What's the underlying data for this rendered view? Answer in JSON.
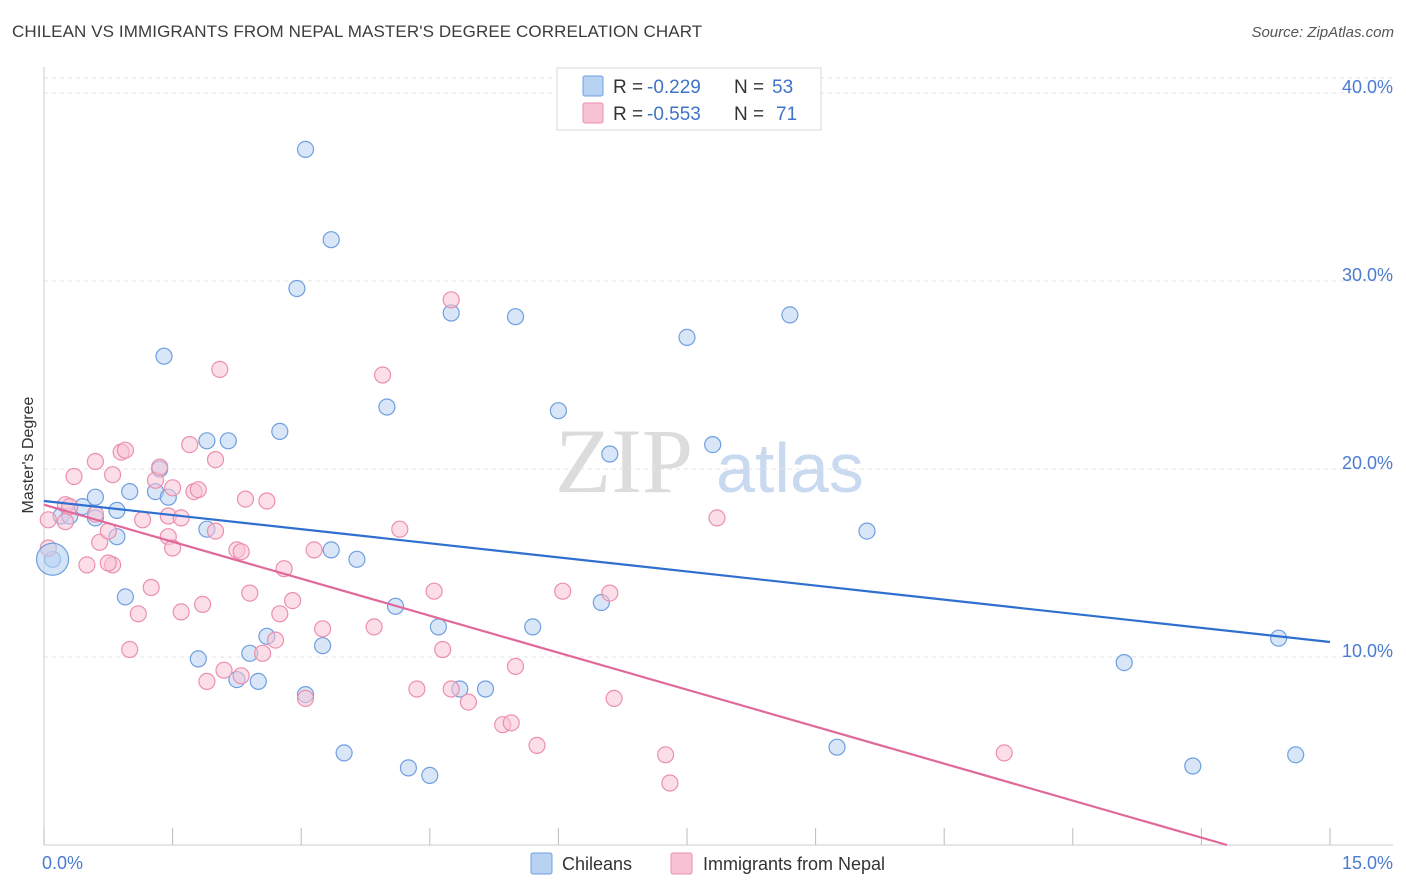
{
  "header": {
    "title": "CHILEAN VS IMMIGRANTS FROM NEPAL MASTER'S DEGREE CORRELATION CHART",
    "source": "Source: ZipAtlas.com"
  },
  "watermark": {
    "zip": "ZIP",
    "atlas": "atlas"
  },
  "chart_data": {
    "type": "scatter",
    "title": "CHILEAN VS IMMIGRANTS FROM NEPAL MASTER'S DEGREE CORRELATION CHART",
    "xlabel": "",
    "ylabel": "Master's Degree",
    "xlim": [
      0,
      15
    ],
    "ylim": [
      0,
      40.8
    ],
    "x_tick_labels": [
      "0.0%",
      "15.0%"
    ],
    "y_ticks": [
      10,
      20,
      30,
      40
    ],
    "y_tick_labels": [
      "10.0%",
      "20.0%",
      "30.0%",
      "40.0%"
    ],
    "grid": true,
    "legend_position": "bottom-center",
    "stats": [
      {
        "r_label": "R =",
        "r_value": "-0.229",
        "n_label": "N =",
        "n_value": "53"
      },
      {
        "r_label": "R =",
        "r_value": "-0.553",
        "n_label": "N =",
        "n_value": "71"
      }
    ],
    "series": [
      {
        "name": "Chileans",
        "color": "#6f9fe0",
        "fill": "#b8d2f2",
        "line_color": "#2f6fcf",
        "trend": {
          "x0": 0,
          "y0": 18.3,
          "x1": 15,
          "y1": 10.8
        },
        "points": [
          [
            0.1,
            15.2
          ],
          [
            0.2,
            17.5
          ],
          [
            0.3,
            17.5
          ],
          [
            0.45,
            18.0
          ],
          [
            0.6,
            18.5
          ],
          [
            0.85,
            17.8
          ],
          [
            1.0,
            18.8
          ],
          [
            1.3,
            18.8
          ],
          [
            1.45,
            18.5
          ],
          [
            1.35,
            20.0
          ],
          [
            1.4,
            26.0
          ],
          [
            1.9,
            21.5
          ],
          [
            2.15,
            21.5
          ],
          [
            1.9,
            16.8
          ],
          [
            0.85,
            16.4
          ],
          [
            0.95,
            13.2
          ],
          [
            1.8,
            9.9
          ],
          [
            2.25,
            8.8
          ],
          [
            2.4,
            10.2
          ],
          [
            2.5,
            8.7
          ],
          [
            2.6,
            11.1
          ],
          [
            2.75,
            22.0
          ],
          [
            3.05,
            37.0
          ],
          [
            2.95,
            29.6
          ],
          [
            3.35,
            32.2
          ],
          [
            3.35,
            15.7
          ],
          [
            3.05,
            8.0
          ],
          [
            3.25,
            10.6
          ],
          [
            3.5,
            4.9
          ],
          [
            3.65,
            15.2
          ],
          [
            4.0,
            23.3
          ],
          [
            4.1,
            12.7
          ],
          [
            4.25,
            4.1
          ],
          [
            4.5,
            3.7
          ],
          [
            4.6,
            11.6
          ],
          [
            4.75,
            28.3
          ],
          [
            4.85,
            8.3
          ],
          [
            5.15,
            8.3
          ],
          [
            5.5,
            28.1
          ],
          [
            5.7,
            11.6
          ],
          [
            6.0,
            23.1
          ],
          [
            6.6,
            20.8
          ],
          [
            6.5,
            12.9
          ],
          [
            7.5,
            27.0
          ],
          [
            7.8,
            21.3
          ],
          [
            8.7,
            28.2
          ],
          [
            9.25,
            5.2
          ],
          [
            9.6,
            16.7
          ],
          [
            12.6,
            9.7
          ],
          [
            13.4,
            4.2
          ],
          [
            14.4,
            11.0
          ],
          [
            14.6,
            4.8
          ],
          [
            0.6,
            17.4
          ]
        ]
      },
      {
        "name": "Immigrants from Nepal",
        "color": "#ec8fae",
        "fill": "#f7c3d4",
        "line_color": "#e0699a",
        "trend": {
          "x0": 0,
          "y0": 18.1,
          "x1": 13.8,
          "y1": 0
        },
        "points": [
          [
            0.05,
            17.3
          ],
          [
            0.05,
            15.8
          ],
          [
            0.25,
            17.2
          ],
          [
            0.25,
            18.1
          ],
          [
            0.35,
            19.6
          ],
          [
            0.5,
            14.9
          ],
          [
            0.6,
            17.6
          ],
          [
            0.6,
            20.4
          ],
          [
            0.65,
            16.1
          ],
          [
            0.75,
            16.7
          ],
          [
            0.8,
            19.7
          ],
          [
            0.8,
            14.9
          ],
          [
            0.9,
            20.9
          ],
          [
            0.95,
            21.0
          ],
          [
            1.0,
            10.4
          ],
          [
            1.1,
            12.3
          ],
          [
            1.15,
            17.3
          ],
          [
            1.25,
            13.7
          ],
          [
            1.3,
            19.4
          ],
          [
            1.35,
            20.1
          ],
          [
            1.45,
            17.5
          ],
          [
            1.45,
            16.4
          ],
          [
            1.5,
            19.0
          ],
          [
            1.5,
            15.8
          ],
          [
            1.6,
            17.4
          ],
          [
            1.6,
            12.4
          ],
          [
            1.7,
            21.3
          ],
          [
            1.75,
            18.8
          ],
          [
            1.8,
            18.9
          ],
          [
            1.85,
            12.8
          ],
          [
            1.9,
            8.7
          ],
          [
            2.0,
            20.5
          ],
          [
            2.0,
            16.7
          ],
          [
            2.05,
            25.3
          ],
          [
            2.1,
            9.3
          ],
          [
            2.25,
            15.7
          ],
          [
            2.3,
            15.6
          ],
          [
            2.3,
            9.0
          ],
          [
            2.35,
            18.4
          ],
          [
            2.4,
            13.4
          ],
          [
            2.55,
            10.2
          ],
          [
            2.6,
            18.3
          ],
          [
            2.7,
            10.9
          ],
          [
            2.75,
            12.3
          ],
          [
            2.8,
            14.7
          ],
          [
            2.9,
            13.0
          ],
          [
            3.05,
            7.8
          ],
          [
            3.15,
            15.7
          ],
          [
            3.25,
            11.5
          ],
          [
            3.85,
            11.6
          ],
          [
            3.95,
            25.0
          ],
          [
            4.15,
            16.8
          ],
          [
            4.35,
            8.3
          ],
          [
            4.55,
            13.5
          ],
          [
            4.65,
            10.4
          ],
          [
            4.75,
            29.0
          ],
          [
            4.75,
            8.3
          ],
          [
            4.95,
            7.6
          ],
          [
            5.35,
            6.4
          ],
          [
            5.45,
            6.5
          ],
          [
            5.5,
            9.5
          ],
          [
            5.75,
            5.3
          ],
          [
            6.05,
            13.5
          ],
          [
            6.6,
            13.4
          ],
          [
            6.65,
            7.8
          ],
          [
            7.25,
            4.8
          ],
          [
            7.3,
            3.3
          ],
          [
            7.85,
            17.4
          ],
          [
            11.2,
            4.9
          ],
          [
            0.3,
            18.0
          ],
          [
            0.75,
            15.0
          ]
        ]
      }
    ]
  }
}
